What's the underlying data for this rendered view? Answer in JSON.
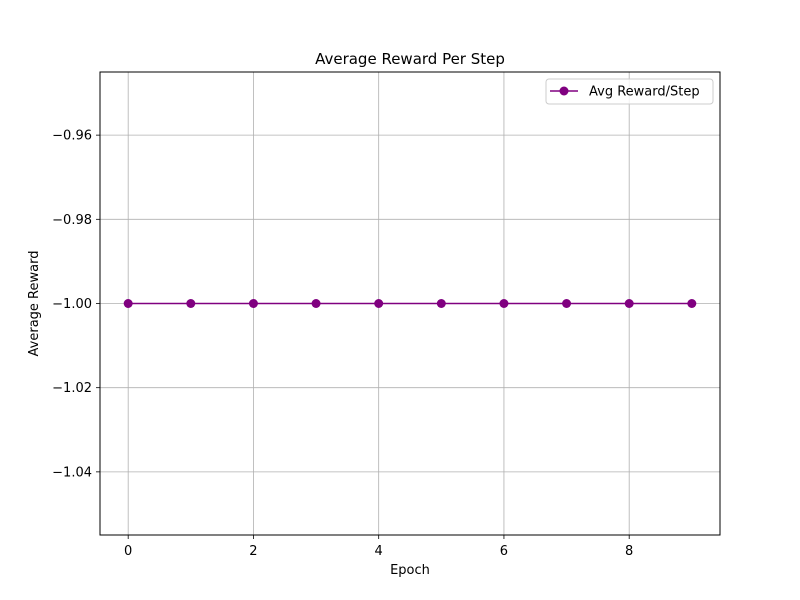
{
  "chart_data": {
    "type": "line",
    "title": "Average Reward Per Step",
    "xlabel": "Epoch",
    "ylabel": "Average Reward",
    "x": [
      0,
      1,
      2,
      3,
      4,
      5,
      6,
      7,
      8,
      9
    ],
    "series": [
      {
        "name": "Avg Reward/Step",
        "color": "#800080",
        "marker": "circle",
        "values": [
          -1.0,
          -1.0,
          -1.0,
          -1.0,
          -1.0,
          -1.0,
          -1.0,
          -1.0,
          -1.0,
          -1.0
        ]
      }
    ],
    "xlim": [
      -0.45,
      9.45
    ],
    "ylim": [
      -1.055,
      -0.945
    ],
    "xticks": [
      0,
      2,
      4,
      6,
      8
    ],
    "xtick_labels": [
      "0",
      "2",
      "4",
      "6",
      "8"
    ],
    "yticks": [
      -1.04,
      -1.02,
      -1.0,
      -0.98,
      -0.96
    ],
    "ytick_labels": [
      "−1.04",
      "−1.02",
      "−1.00",
      "−0.98",
      "−0.96"
    ],
    "grid": true,
    "legend_position": "top-right"
  }
}
